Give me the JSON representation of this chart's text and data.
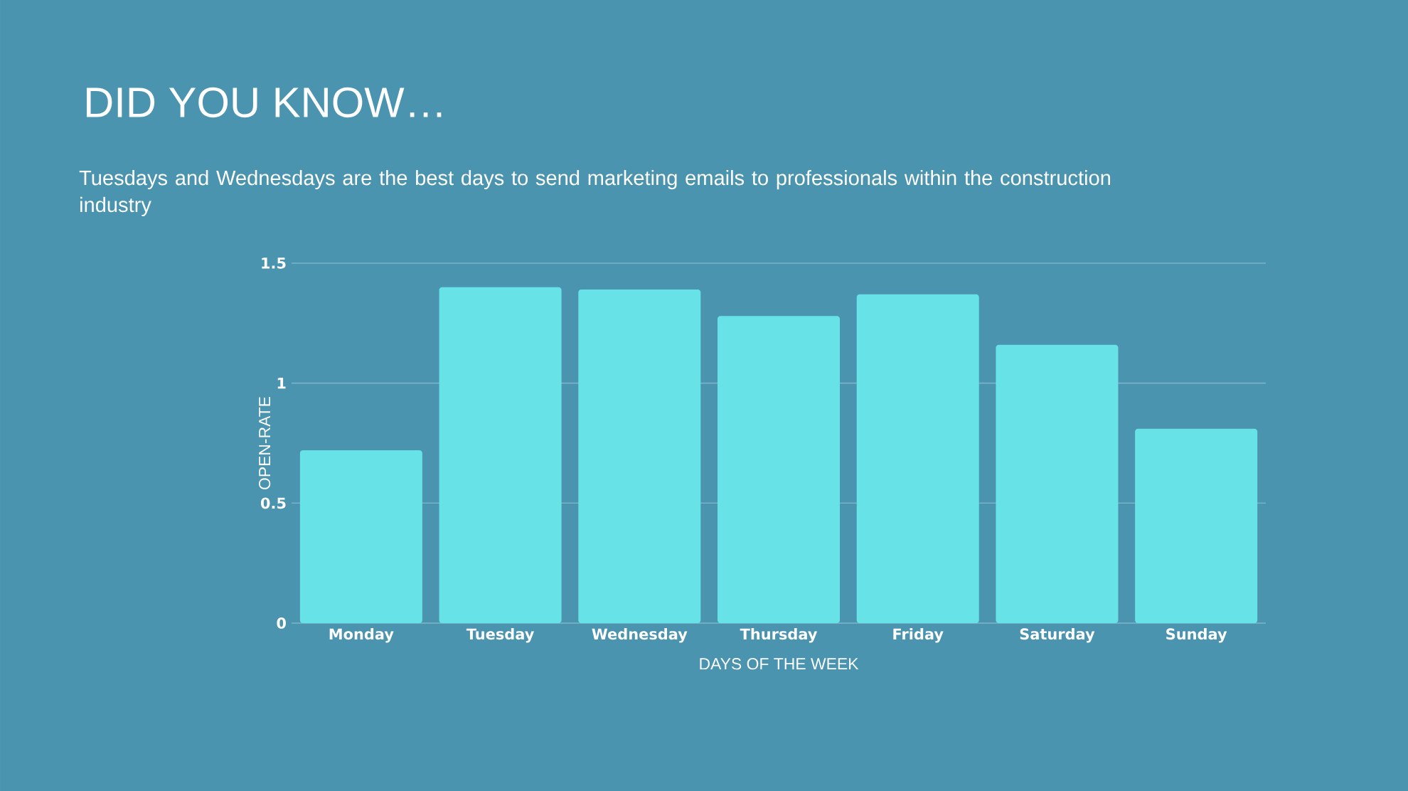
{
  "chart_data": {
    "type": "bar",
    "title": "DID YOU KNOW…",
    "subtitle": "Tuesdays and Wednesdays are the best days to send marketing emails to professionals within the construction industry",
    "xlabel": "DAYS OF THE WEEK",
    "ylabel": "OPEN-RATE",
    "categories": [
      "Monday",
      "Tuesday",
      "Wednesday",
      "Thursday",
      "Friday",
      "Saturday",
      "Sunday"
    ],
    "values": [
      0.72,
      1.4,
      1.39,
      1.28,
      1.37,
      1.16,
      0.81
    ],
    "color": "#67e3e8",
    "ylim": [
      0,
      1.5
    ],
    "yticks": [
      0,
      0.5,
      1,
      1.5
    ],
    "grid": "y"
  }
}
